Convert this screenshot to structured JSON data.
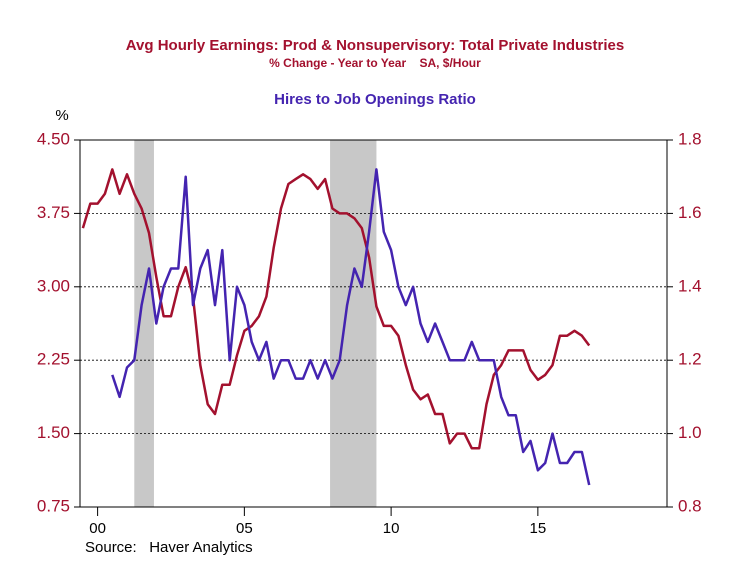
{
  "chart_data": {
    "type": "line",
    "subtitle": "% Change - Year to Year    SA, $/Hour",
    "ylabel": "%",
    "source": "Source:   Haver Analytics",
    "xlim": [
      1999.4,
      2019.4
    ],
    "xticks": [
      {
        "value": 2000,
        "label": "00"
      },
      {
        "value": 2005,
        "label": "05"
      },
      {
        "value": 2010,
        "label": "10"
      },
      {
        "value": 2015,
        "label": "15"
      }
    ],
    "ylim": [
      0.75,
      4.5
    ],
    "yticks": [
      0.75,
      {
        "value": 1.5,
        "label": "1.50"
      },
      2.25,
      {
        "value": 3.0,
        "label": "3.00"
      },
      3.75,
      {
        "value": 4.5,
        "label": "4.50"
      }
    ],
    "y2lim": [
      0.8,
      1.8
    ],
    "y2ticks": [
      0.8,
      {
        "value": 1.0,
        "label": "1.0"
      },
      1.2,
      1.4,
      1.6,
      1.8
    ],
    "grid": true,
    "recessions": [
      [
        2001.25,
        2001.92
      ],
      [
        2007.92,
        2009.5
      ]
    ],
    "recession_color": "#c8c8c8",
    "series": [
      {
        "name": "Avg Hourly Earnings: Prod & Nonsupervisory: Total Private Industries",
        "color": "#a3112e",
        "x": [
          1999.5,
          1999.75,
          2000,
          2000.25,
          2000.5,
          2000.75,
          2001,
          2001.25,
          2001.5,
          2001.75,
          2002,
          2002.25,
          2002.5,
          2002.75,
          2003,
          2003.25,
          2003.5,
          2003.75,
          2004,
          2004.25,
          2004.5,
          2004.75,
          2005,
          2005.25,
          2005.5,
          2005.75,
          2006,
          2006.25,
          2006.5,
          2006.75,
          2007,
          2007.25,
          2007.5,
          2007.75,
          2008,
          2008.25,
          2008.5,
          2008.75,
          2009,
          2009.25,
          2009.5,
          2009.75,
          2010,
          2010.25,
          2010.5,
          2010.75,
          2011,
          2011.25,
          2011.5,
          2011.75,
          2012,
          2012.25,
          2012.5,
          2012.75,
          2013,
          2013.25,
          2013.5,
          2013.75,
          2014,
          2014.25,
          2014.5,
          2014.75,
          2015,
          2015.25,
          2015.5,
          2015.75,
          2016,
          2016.25,
          2016.5,
          2016.75
        ],
        "values": [
          3.6,
          3.85,
          3.85,
          3.95,
          4.2,
          3.95,
          4.15,
          3.95,
          3.8,
          3.55,
          3.1,
          2.7,
          2.7,
          3.0,
          3.2,
          2.9,
          2.2,
          1.8,
          1.7,
          2.0,
          2.0,
          2.3,
          2.55,
          2.6,
          2.7,
          2.9,
          3.4,
          3.8,
          4.05,
          4.1,
          4.15,
          4.1,
          4.0,
          4.1,
          3.8,
          3.75,
          3.75,
          3.7,
          3.6,
          3.3,
          2.8,
          2.6,
          2.6,
          2.5,
          2.2,
          1.95,
          1.85,
          1.9,
          1.7,
          1.7,
          1.4,
          1.5,
          1.5,
          1.35,
          1.35,
          1.8,
          2.1,
          2.2,
          2.35,
          2.35,
          2.35,
          2.15,
          2.05,
          2.1,
          2.2,
          2.5,
          2.5,
          2.55,
          2.5,
          2.4
        ]
      },
      {
        "name": "Hires to Job Openings Ratio",
        "color": "#4424b0",
        "axis": "y2",
        "x": [
          2000.5,
          2000.75,
          2001,
          2001.25,
          2001.5,
          2001.75,
          2002,
          2002.25,
          2002.5,
          2002.75,
          2003,
          2003.25,
          2003.5,
          2003.75,
          2004,
          2004.25,
          2004.5,
          2004.75,
          2005,
          2005.25,
          2005.5,
          2005.75,
          2006,
          2006.25,
          2006.5,
          2006.75,
          2007,
          2007.25,
          2007.5,
          2007.75,
          2008,
          2008.25,
          2008.5,
          2008.75,
          2009,
          2009.25,
          2009.5,
          2009.75,
          2010,
          2010.25,
          2010.5,
          2010.75,
          2011,
          2011.25,
          2011.5,
          2011.75,
          2012,
          2012.25,
          2012.5,
          2012.75,
          2013,
          2013.25,
          2013.5,
          2013.75,
          2014,
          2014.25,
          2014.5,
          2014.75,
          2015,
          2015.25,
          2015.5,
          2015.75,
          2016,
          2016.25,
          2016.5,
          2016.75
        ],
        "values": [
          1.16,
          1.1,
          1.18,
          1.2,
          1.35,
          1.45,
          1.3,
          1.4,
          1.45,
          1.45,
          1.7,
          1.35,
          1.45,
          1.5,
          1.35,
          1.5,
          1.2,
          1.4,
          1.35,
          1.25,
          1.2,
          1.25,
          1.15,
          1.2,
          1.2,
          1.15,
          1.15,
          1.2,
          1.15,
          1.2,
          1.15,
          1.2,
          1.35,
          1.45,
          1.4,
          1.55,
          1.72,
          1.55,
          1.5,
          1.4,
          1.35,
          1.4,
          1.3,
          1.25,
          1.3,
          1.25,
          1.2,
          1.2,
          1.2,
          1.25,
          1.2,
          1.2,
          1.2,
          1.1,
          1.05,
          1.05,
          0.95,
          0.98,
          0.9,
          0.92,
          1.0,
          0.92,
          0.92,
          0.95,
          0.95,
          0.86
        ]
      }
    ]
  }
}
